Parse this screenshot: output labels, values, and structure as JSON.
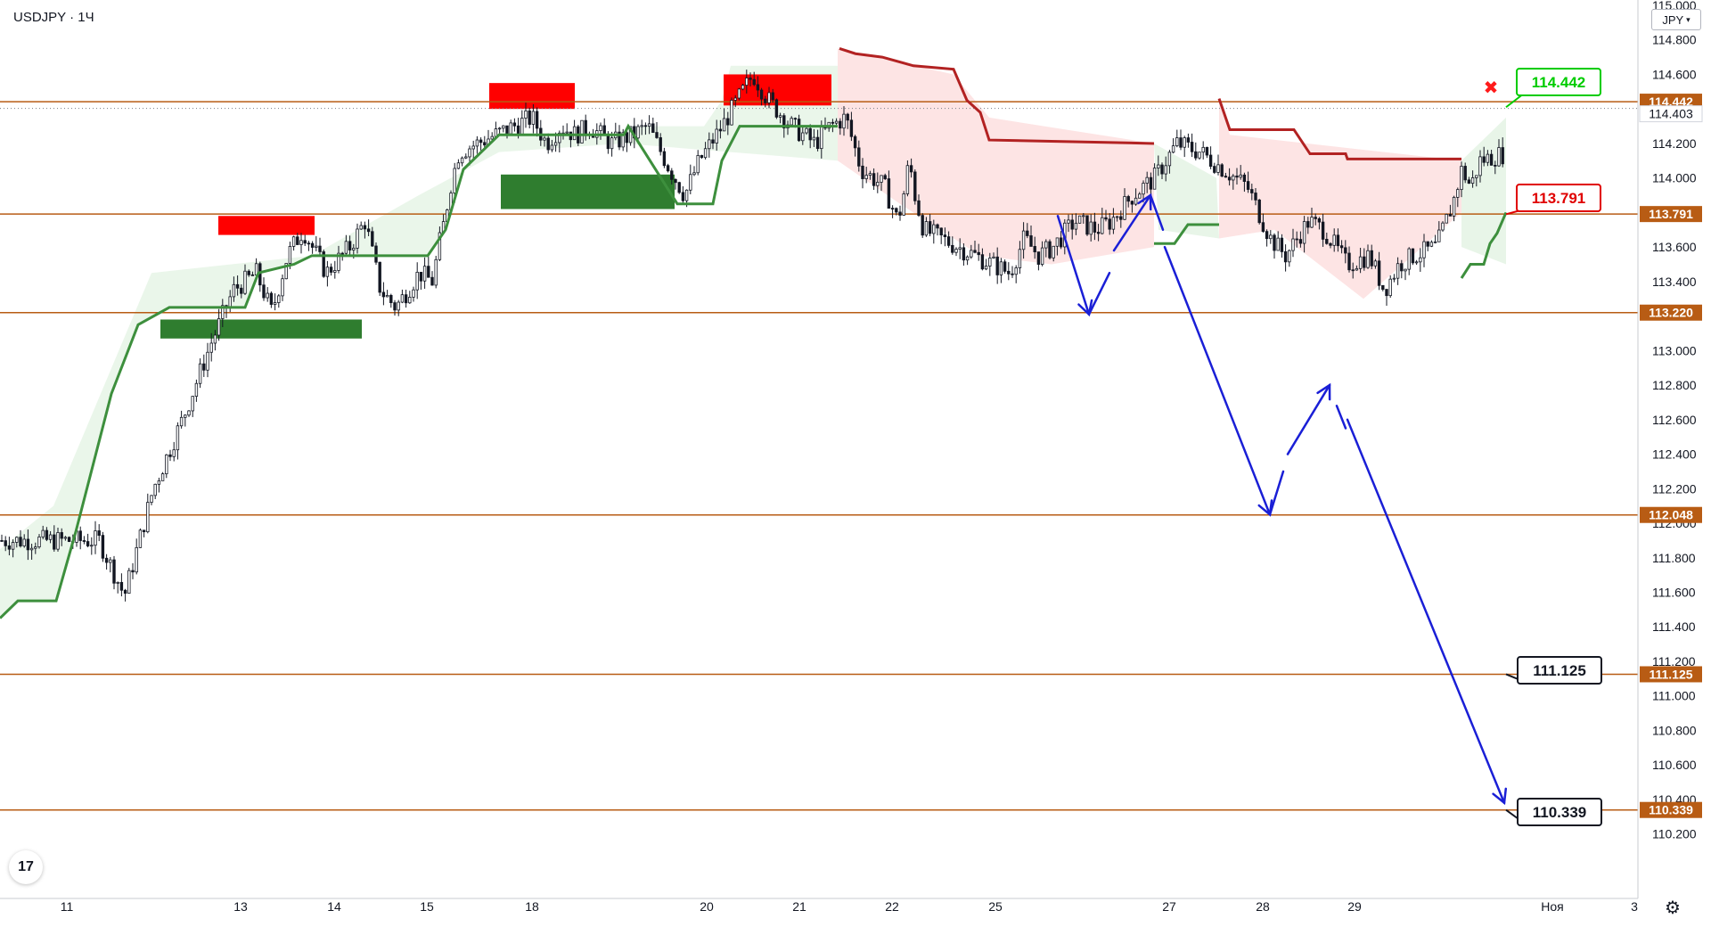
{
  "header": {
    "symbol": "USDJPY",
    "separator": "·",
    "interval": "1Ч"
  },
  "currency_button": "JPY",
  "logo_text": "17",
  "settings_icon": "gear-icon",
  "colors": {
    "level_line": "#b85c14",
    "level_tag": "#b85c14",
    "supertrend_up": "#3d8f3d",
    "supertrend_down": "#b22222",
    "fill_up": "#e8f5e8",
    "fill_down": "#fde4e4",
    "zone_red": "#ff0000",
    "zone_green": "#2f7d2f",
    "forecast": "#1a1fd6",
    "candle": "#131722",
    "callout_green": "#00cc00",
    "callout_red": "#e00000"
  },
  "chart_data": {
    "type": "candlestick",
    "title": "USDJPY · 1Ч",
    "ylim": [
      110.1,
      115.0
    ],
    "y_ticks": [
      "110.200",
      "110.400",
      "110.600",
      "110.800",
      "111.000",
      "111.200",
      "111.400",
      "111.600",
      "111.800",
      "112.000",
      "112.200",
      "112.400",
      "112.600",
      "112.800",
      "113.000",
      "113.200",
      "113.400",
      "113.600",
      "113.800",
      "114.000",
      "114.200",
      "114.400",
      "114.600",
      "114.800",
      "115.000"
    ],
    "x_ticks": [
      "11",
      "13",
      "14",
      "15",
      "18",
      "20",
      "21",
      "22",
      "25",
      "27",
      "28",
      "29",
      "Ноя",
      "3"
    ],
    "levels": [
      {
        "value": 114.442,
        "label": "114.442"
      },
      {
        "value": 113.791,
        "label": "113.791"
      },
      {
        "value": 113.22,
        "label": "113.220"
      },
      {
        "value": 112.048,
        "label": "112.048"
      },
      {
        "value": 111.125,
        "label": "111.125"
      },
      {
        "value": 110.339,
        "label": "110.339"
      }
    ],
    "last_price": {
      "value": 114.403,
      "label": "114.403"
    },
    "callouts": [
      {
        "label": "114.442",
        "style": "green"
      },
      {
        "label": "113.791",
        "style": "red"
      },
      {
        "label": "111.125",
        "style": "black"
      },
      {
        "label": "110.339",
        "style": "black"
      }
    ],
    "close_series": [
      {
        "x": "11 09:00",
        "close": 111.9
      },
      {
        "x": "11 16:00",
        "close": 111.58
      },
      {
        "x": "12 00:00",
        "close": 112.2
      },
      {
        "x": "12 08:00",
        "close": 112.6
      },
      {
        "x": "12 16:00",
        "close": 113.05
      },
      {
        "x": "12 22:00",
        "close": 113.35
      },
      {
        "x": "13 04:00",
        "close": 113.45
      },
      {
        "x": "13 08:00",
        "close": 113.22
      },
      {
        "x": "13 12:00",
        "close": 113.55
      },
      {
        "x": "13 16:00",
        "close": 113.7
      },
      {
        "x": "13 22:00",
        "close": 113.45
      },
      {
        "x": "14 04:00",
        "close": 113.6
      },
      {
        "x": "14 08:00",
        "close": 113.75
      },
      {
        "x": "14 12:00",
        "close": 113.35
      },
      {
        "x": "14 16:00",
        "close": 113.25
      },
      {
        "x": "14 22:00",
        "close": 113.45
      },
      {
        "x": "15 04:00",
        "close": 113.4
      },
      {
        "x": "15 08:00",
        "close": 113.6
      },
      {
        "x": "15 12:00",
        "close": 113.75
      },
      {
        "x": "15 16:00",
        "close": 113.95
      },
      {
        "x": "15 22:00",
        "close": 114.15
      },
      {
        "x": "18 00:00",
        "close": 114.35
      },
      {
        "x": "18 04:00",
        "close": 114.2
      },
      {
        "x": "18 08:00",
        "close": 114.3
      },
      {
        "x": "18 12:00",
        "close": 114.25
      },
      {
        "x": "18 16:00",
        "close": 114.3
      },
      {
        "x": "18 22:00",
        "close": 114.2
      },
      {
        "x": "19 04:00",
        "close": 114.25
      },
      {
        "x": "19 08:00",
        "close": 114.3
      },
      {
        "x": "19 14:00",
        "close": 114.05
      },
      {
        "x": "19 18:00",
        "close": 113.9
      },
      {
        "x": "19 22:00",
        "close": 114.1
      },
      {
        "x": "20 04:00",
        "close": 114.3
      },
      {
        "x": "20 08:00",
        "close": 114.45
      },
      {
        "x": "20 12:00",
        "close": 114.6
      },
      {
        "x": "20 16:00",
        "close": 114.45
      },
      {
        "x": "20 22:00",
        "close": 114.3
      },
      {
        "x": "21 04:00",
        "close": 114.2
      },
      {
        "x": "21 08:00",
        "close": 114.3
      },
      {
        "x": "21 12:00",
        "close": 114.35
      },
      {
        "x": "21 16:00",
        "close": 114.05
      },
      {
        "x": "21 22:00",
        "close": 113.95
      },
      {
        "x": "22 04:00",
        "close": 113.75
      },
      {
        "x": "22 08:00",
        "close": 113.9
      },
      {
        "x": "22 12:00",
        "close": 114.1
      },
      {
        "x": "22 16:00",
        "close": 113.9
      },
      {
        "x": "22 22:00",
        "close": 113.7
      },
      {
        "x": "25 04:00",
        "close": 113.45
      },
      {
        "x": "25 08:00",
        "close": 113.65
      },
      {
        "x": "25 12:00",
        "close": 113.55
      },
      {
        "x": "25 16:00",
        "close": 113.6
      },
      {
        "x": "25 22:00",
        "close": 113.75
      },
      {
        "x": "26 04:00",
        "close": 113.7
      },
      {
        "x": "26 08:00",
        "close": 113.75
      },
      {
        "x": "26 14:00",
        "close": 113.9
      },
      {
        "x": "26 20:00",
        "close": 114.0
      },
      {
        "x": "27 02:00",
        "close": 114.2
      },
      {
        "x": "27 08:00",
        "close": 114.15
      },
      {
        "x": "27 14:00",
        "close": 114.05
      },
      {
        "x": "27 20:00",
        "close": 113.95
      },
      {
        "x": "28 02:00",
        "close": 113.65
      },
      {
        "x": "28 06:00",
        "close": 113.55
      },
      {
        "x": "28 12:00",
        "close": 113.75
      },
      {
        "x": "28 16:00",
        "close": 113.7
      },
      {
        "x": "28 22:00",
        "close": 113.5
      },
      {
        "x": "29 04:00",
        "close": 113.55
      },
      {
        "x": "29 08:00",
        "close": 113.35
      },
      {
        "x": "29 12:00",
        "close": 113.5
      },
      {
        "x": "29 16:00",
        "close": 113.55
      },
      {
        "x": "29 22:00",
        "close": 113.6
      },
      {
        "x": "30 04:00",
        "close": 113.85
      },
      {
        "x": "30 08:00",
        "close": 114.05
      },
      {
        "x": "30 12:00",
        "close": 113.95
      },
      {
        "x": "30 16:00",
        "close": 114.1
      },
      {
        "x": "1 04:00",
        "close": 114.25
      },
      {
        "x": "1 08:00",
        "close": 114.4
      }
    ]
  }
}
